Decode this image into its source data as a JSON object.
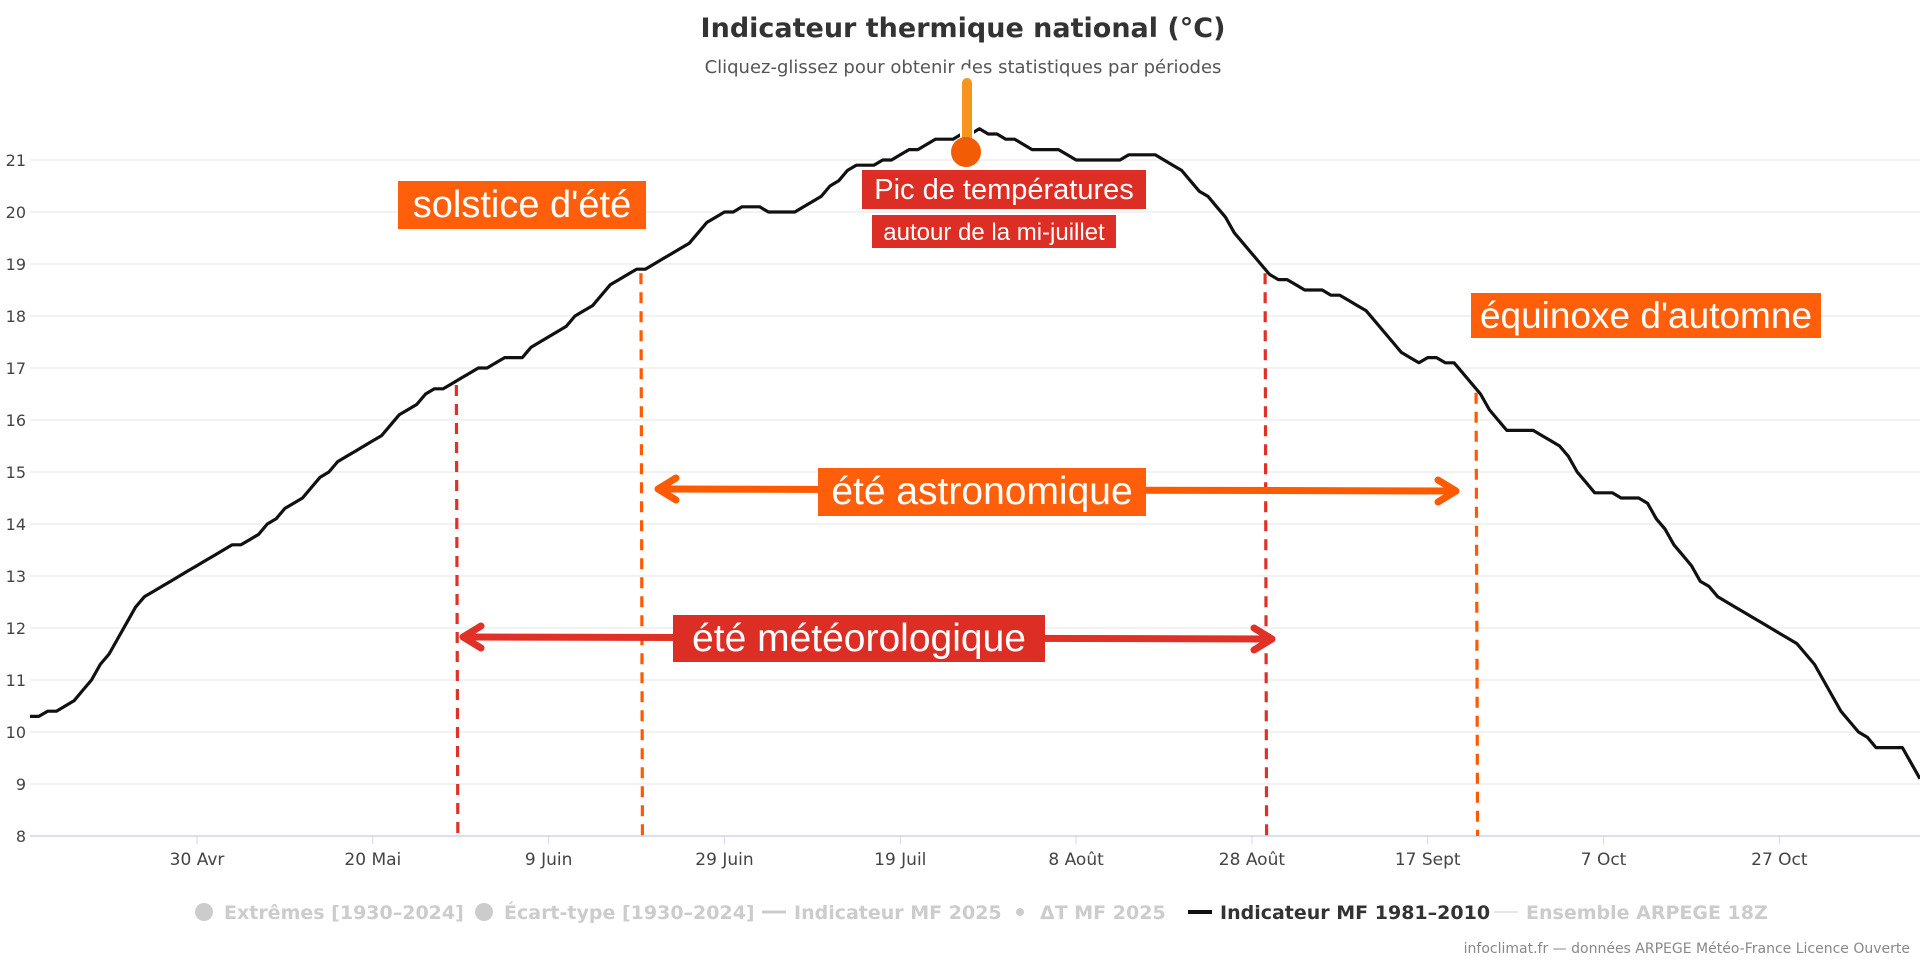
{
  "colors": {
    "series_line": "#111111",
    "grid": "#e6e6e6",
    "axis": "#ccd6eb",
    "orange": "#ff5a00",
    "orange_box": "#ff5f0a",
    "red": "#e03128",
    "red_box": "#dd2e26",
    "legend_inactive": "#cccccc",
    "legend_active": "#333333"
  },
  "chart_data": {
    "type": "line",
    "title": "Indicateur thermique national (°C)",
    "subtitle": "Cliquez-glissez pour obtenir des statistiques par périodes",
    "ylim": [
      8,
      22
    ],
    "y_ticks": [
      8,
      9,
      10,
      11,
      12,
      13,
      14,
      15,
      16,
      17,
      18,
      19,
      20,
      21
    ],
    "x_ticks": [
      "30 Avr",
      "20 Mai",
      "9 Juin",
      "29 Juin",
      "19 Juil",
      "8 Août",
      "28 Août",
      "17 Sept",
      "7 Oct",
      "27 Oct"
    ],
    "x_tick_days": [
      19,
      39,
      59,
      79,
      99,
      119,
      139,
      159,
      179,
      199
    ],
    "x_range_days": [
      0,
      215
    ],
    "series": [
      {
        "name": "Indicateur MF 1981–2010",
        "days": [
          0,
          1,
          2,
          3,
          4,
          5,
          6,
          7,
          8,
          9,
          10,
          11,
          12,
          13,
          14,
          15,
          16,
          17,
          18,
          19,
          20,
          21,
          22,
          23,
          24,
          25,
          26,
          27,
          28,
          29,
          30,
          31,
          32,
          33,
          34,
          35,
          36,
          37,
          38,
          39,
          40,
          41,
          42,
          43,
          44,
          45,
          46,
          47,
          48,
          49,
          50,
          51,
          52,
          53,
          54,
          55,
          56,
          57,
          58,
          59,
          60,
          61,
          62,
          63,
          64,
          65,
          66,
          67,
          68,
          69,
          70,
          71,
          72,
          73,
          74,
          75,
          76,
          77,
          78,
          79,
          80,
          81,
          82,
          83,
          84,
          85,
          86,
          87,
          88,
          89,
          90,
          91,
          92,
          93,
          94,
          95,
          96,
          97,
          98,
          99,
          100,
          101,
          102,
          103,
          104,
          105,
          106,
          107,
          108,
          109,
          110,
          111,
          112,
          113,
          114,
          115,
          116,
          117,
          118,
          119,
          120,
          121,
          122,
          123,
          124,
          125,
          126,
          127,
          128,
          129,
          130,
          131,
          132,
          133,
          134,
          135,
          136,
          137,
          138,
          139,
          140,
          141,
          142,
          143,
          144,
          145,
          146,
          147,
          148,
          149,
          150,
          151,
          152,
          153,
          154,
          155,
          156,
          157,
          158,
          159,
          160,
          161,
          162,
          163,
          164,
          165,
          166,
          167,
          168,
          169,
          170,
          171,
          172,
          173,
          174,
          175,
          176,
          177,
          178,
          179,
          180,
          181,
          182,
          183,
          184,
          185,
          186,
          187,
          188,
          189,
          190,
          191,
          192,
          193,
          194,
          195,
          196,
          197,
          198,
          199,
          200,
          201,
          202,
          203,
          204,
          205,
          206,
          207,
          208,
          209,
          210,
          211,
          212,
          213,
          214,
          215
        ],
        "values": [
          10.3,
          10.3,
          10.4,
          10.4,
          10.5,
          10.6,
          10.8,
          11.0,
          11.3,
          11.5,
          11.8,
          12.1,
          12.4,
          12.6,
          12.7,
          12.8,
          12.9,
          13.0,
          13.1,
          13.2,
          13.3,
          13.4,
          13.5,
          13.6,
          13.6,
          13.7,
          13.8,
          14.0,
          14.1,
          14.3,
          14.4,
          14.5,
          14.7,
          14.9,
          15.0,
          15.2,
          15.3,
          15.4,
          15.5,
          15.6,
          15.7,
          15.9,
          16.1,
          16.2,
          16.3,
          16.5,
          16.6,
          16.6,
          16.7,
          16.8,
          16.9,
          17.0,
          17.0,
          17.1,
          17.2,
          17.2,
          17.2,
          17.4,
          17.5,
          17.6,
          17.7,
          17.8,
          18.0,
          18.1,
          18.2,
          18.4,
          18.6,
          18.7,
          18.8,
          18.9,
          18.9,
          19.0,
          19.1,
          19.2,
          19.3,
          19.4,
          19.6,
          19.8,
          19.9,
          20.0,
          20.0,
          20.1,
          20.1,
          20.1,
          20.0,
          20.0,
          20.0,
          20.0,
          20.1,
          20.2,
          20.3,
          20.5,
          20.6,
          20.8,
          20.9,
          20.9,
          20.9,
          21.0,
          21.0,
          21.1,
          21.2,
          21.2,
          21.3,
          21.4,
          21.4,
          21.4,
          21.5,
          21.5,
          21.6,
          21.5,
          21.5,
          21.4,
          21.4,
          21.3,
          21.2,
          21.2,
          21.2,
          21.2,
          21.1,
          21.0,
          21.0,
          21.0,
          21.0,
          21.0,
          21.0,
          21.1,
          21.1,
          21.1,
          21.1,
          21.0,
          20.9,
          20.8,
          20.6,
          20.4,
          20.3,
          20.1,
          19.9,
          19.6,
          19.4,
          19.2,
          19.0,
          18.8,
          18.7,
          18.7,
          18.6,
          18.5,
          18.5,
          18.5,
          18.4,
          18.4,
          18.3,
          18.2,
          18.1,
          17.9,
          17.7,
          17.5,
          17.3,
          17.2,
          17.1,
          17.2,
          17.2,
          17.1,
          17.1,
          16.9,
          16.7,
          16.5,
          16.2,
          16.0,
          15.8,
          15.8,
          15.8,
          15.8,
          15.7,
          15.6,
          15.5,
          15.3,
          15.0,
          14.8,
          14.6,
          14.6,
          14.6,
          14.5,
          14.5,
          14.5,
          14.4,
          14.1,
          13.9,
          13.6,
          13.4,
          13.2,
          12.9,
          12.8,
          12.6,
          12.5,
          12.4,
          12.3,
          12.2,
          12.1,
          12.0,
          11.9,
          11.8,
          11.7,
          11.5,
          11.3,
          11.0,
          10.7,
          10.4,
          10.2,
          10.0,
          9.9,
          9.7,
          9.7,
          9.7,
          9.7,
          9.4,
          9.1
        ]
      }
    ],
    "vertical_markers": [
      {
        "day": 48.5,
        "color": "red",
        "name": "debut-ete-meteo"
      },
      {
        "day": 69.5,
        "color": "orange",
        "name": "solstice"
      },
      {
        "day": 140.5,
        "color": "red",
        "name": "fin-ete-meteo"
      },
      {
        "day": 164.5,
        "color": "orange",
        "name": "equinoxe"
      }
    ],
    "legend": [
      {
        "label": "Extrêmes [1930–2024]",
        "symbol": "circle",
        "active": false
      },
      {
        "label": "Écart-type [1930–2024]",
        "symbol": "circle",
        "active": false
      },
      {
        "label": "Indicateur MF 2025",
        "symbol": "line",
        "active": false
      },
      {
        "label": "ΔT MF 2025",
        "symbol": "dot",
        "active": false
      },
      {
        "label": "Indicateur MF 1981–2010",
        "symbol": "line",
        "active": true
      },
      {
        "label": "Ensemble ARPEGE 18Z",
        "symbol": "thinline",
        "active": false
      }
    ],
    "credits": "infoclimat.fr — données ARPEGE Météo-France Licence Ouverte"
  },
  "annotations": {
    "solstice": "solstice d'été",
    "equinox": "équinoxe d'automne",
    "peak_line1": "Pic de températures",
    "peak_line2": "autour de la mi-juillet",
    "astro": "été astronomique",
    "meteo": "été météorologique"
  }
}
